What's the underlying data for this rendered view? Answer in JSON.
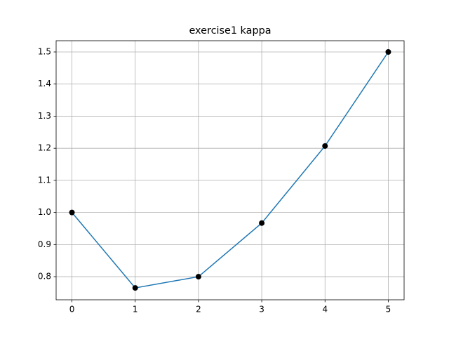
{
  "chart_data": {
    "type": "line",
    "title": "exercise1 kappa",
    "x": [
      0,
      1,
      2,
      3,
      4,
      5
    ],
    "series": [
      {
        "color": "#1f77b4",
        "marker_color": "#000000",
        "values": [
          1.0,
          0.765,
          0.8,
          0.967,
          1.207,
          1.5
        ]
      }
    ],
    "xlim": [
      -0.25,
      5.25
    ],
    "xticks": [
      0,
      1,
      2,
      3,
      4,
      5
    ],
    "ylim": [
      0.728,
      1.535
    ],
    "yticks": [
      0.8,
      0.9,
      {
        "value": 1.0,
        "label": "1.0"
      },
      1.1,
      1.2,
      1.3,
      1.4,
      1.5
    ],
    "grid": true
  }
}
